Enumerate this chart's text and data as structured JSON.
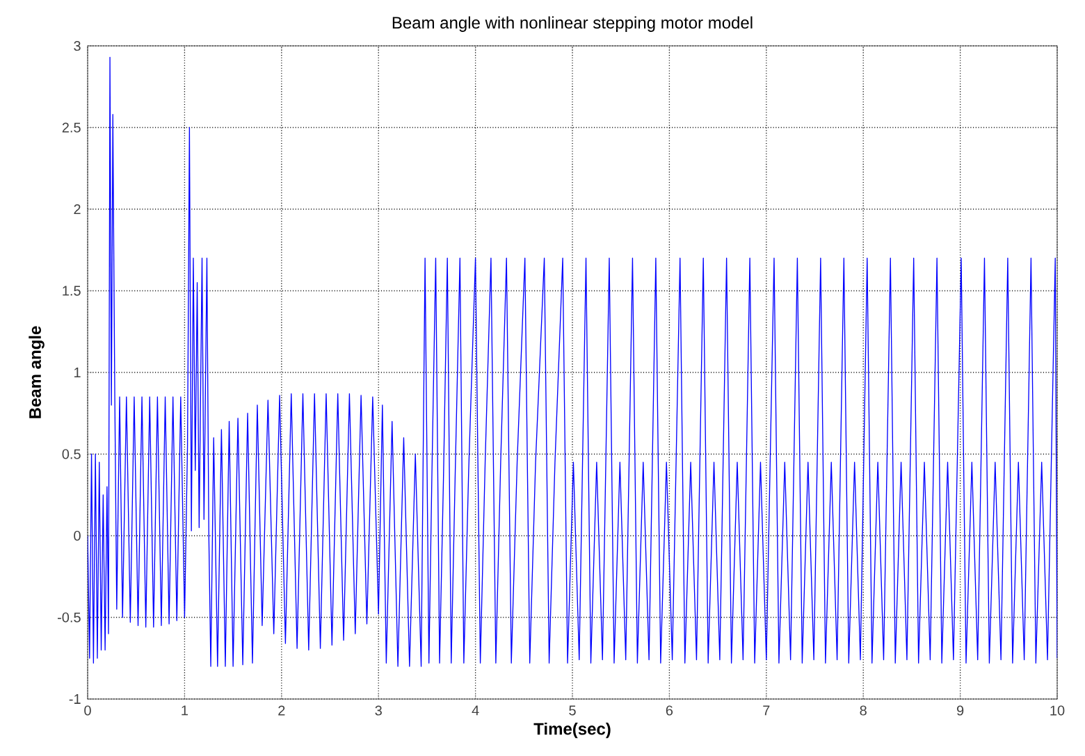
{
  "chart_data": {
    "type": "line",
    "title": "Beam angle with nonlinear stepping motor model",
    "xlabel": "Time(sec)",
    "ylabel": "Beam angle",
    "xlim": [
      0,
      10
    ],
    "ylim": [
      -1,
      3
    ],
    "xticks": [
      0,
      1,
      2,
      3,
      4,
      5,
      6,
      7,
      8,
      9,
      10
    ],
    "yticks": [
      -1,
      -0.5,
      0,
      0.5,
      1,
      1.5,
      2,
      2.5,
      3
    ],
    "grid": true,
    "series": [
      {
        "color": "#0000ff",
        "x": [
          0,
          0.02,
          0.04,
          0.06,
          0.08,
          0.1,
          0.12,
          0.14,
          0.16,
          0.18,
          0.2,
          0.215,
          0.23,
          0.245,
          0.26,
          0.28,
          0.3,
          0.33,
          0.36,
          0.4,
          0.44,
          0.48,
          0.52,
          0.56,
          0.6,
          0.64,
          0.68,
          0.72,
          0.76,
          0.8,
          0.84,
          0.88,
          0.92,
          0.96,
          1.0,
          1.03,
          1.05,
          1.07,
          1.09,
          1.11,
          1.13,
          1.15,
          1.18,
          1.2,
          1.23,
          1.25,
          1.27,
          1.3,
          1.34,
          1.38,
          1.42,
          1.46,
          1.5,
          1.55,
          1.6,
          1.65,
          1.7,
          1.75,
          1.8,
          1.86,
          1.92,
          1.98,
          2.04,
          2.1,
          2.16,
          2.22,
          2.28,
          2.34,
          2.4,
          2.46,
          2.52,
          2.58,
          2.64,
          2.7,
          2.76,
          2.82,
          2.88,
          2.94,
          3.0,
          3.04,
          3.08,
          3.14,
          3.2,
          3.26,
          3.32,
          3.38,
          3.44,
          3.48,
          3.52,
          3.55,
          3.59,
          3.63,
          3.67,
          3.71,
          3.75,
          3.79,
          3.84,
          3.88,
          3.93,
          4.0,
          4.05,
          4.1,
          4.16,
          4.21,
          4.26,
          4.32,
          4.37,
          4.43,
          4.51,
          4.56,
          4.62,
          4.71,
          4.76,
          4.82,
          4.9,
          4.95,
          5.01,
          5.07,
          5.14,
          5.19,
          5.25,
          5.31,
          5.38,
          5.43,
          5.49,
          5.55,
          5.62,
          5.67,
          5.73,
          5.79,
          5.86,
          5.91,
          5.97,
          6.03,
          6.11,
          6.16,
          6.22,
          6.28,
          6.35,
          6.4,
          6.46,
          6.52,
          6.59,
          6.64,
          6.7,
          6.76,
          6.83,
          6.88,
          6.94,
          7.0,
          7.08,
          7.13,
          7.19,
          7.25,
          7.32,
          7.37,
          7.43,
          7.49,
          7.56,
          7.61,
          7.67,
          7.73,
          7.8,
          7.85,
          7.91,
          7.97,
          8.04,
          8.09,
          8.15,
          8.21,
          8.28,
          8.33,
          8.39,
          8.45,
          8.52,
          8.57,
          8.63,
          8.69,
          8.76,
          8.81,
          8.87,
          8.93,
          9.01,
          9.06,
          9.12,
          9.18,
          9.25,
          9.3,
          9.36,
          9.42,
          9.49,
          9.54,
          9.6,
          9.66,
          9.73,
          9.78,
          9.84,
          9.9,
          9.98,
          10.0
        ],
        "values": [
          0,
          -0.75,
          0.5,
          -0.78,
          0.5,
          -0.75,
          0.45,
          -0.7,
          0.25,
          -0.7,
          0.3,
          -0.6,
          2.93,
          0.8,
          2.58,
          0.85,
          -0.45,
          0.85,
          -0.5,
          0.85,
          -0.53,
          0.85,
          -0.55,
          0.85,
          -0.56,
          0.85,
          -0.56,
          0.85,
          -0.55,
          0.85,
          -0.54,
          0.85,
          -0.52,
          0.85,
          -0.5,
          0.55,
          2.5,
          0.03,
          1.7,
          0.4,
          1.55,
          0.05,
          1.7,
          0.1,
          1.7,
          0.0,
          -0.8,
          0.6,
          -0.8,
          0.65,
          -0.8,
          0.7,
          -0.8,
          0.72,
          -0.79,
          0.75,
          -0.78,
          0.8,
          -0.55,
          0.83,
          -0.6,
          0.86,
          -0.66,
          0.87,
          -0.69,
          0.87,
          -0.7,
          0.87,
          -0.69,
          0.87,
          -0.67,
          0.87,
          -0.64,
          0.87,
          -0.6,
          0.86,
          -0.54,
          0.85,
          -0.48,
          0.8,
          -0.78,
          0.7,
          -0.8,
          0.6,
          -0.8,
          0.5,
          -0.8,
          1.7,
          -0.78,
          0.35,
          1.7,
          -0.78,
          0.35,
          1.7,
          -0.78,
          0.35,
          1.7,
          -0.78,
          0.4,
          1.7,
          -0.78,
          0.45,
          1.7,
          -0.78,
          0.45,
          1.7,
          -0.78,
          0.45,
          1.7,
          -0.78,
          0.45,
          1.7,
          -0.78,
          0.45,
          1.7,
          -0.78,
          0.45,
          -0.76,
          1.7,
          -0.78,
          0.45,
          -0.76,
          1.7,
          -0.78,
          0.45,
          -0.76,
          1.7,
          -0.78,
          0.45,
          -0.76,
          1.7,
          -0.78,
          0.45,
          -0.76,
          1.7,
          -0.78,
          0.45,
          -0.76,
          1.7,
          -0.78,
          0.45,
          -0.76,
          1.7,
          -0.78,
          0.45,
          -0.76,
          1.7,
          -0.78,
          0.45,
          -0.76,
          1.7,
          -0.78,
          0.45,
          -0.76,
          1.7,
          -0.78,
          0.45,
          -0.76,
          1.7,
          -0.78,
          0.45,
          -0.76,
          1.7,
          -0.78,
          0.45,
          -0.76,
          1.7,
          -0.78,
          0.45,
          -0.76,
          1.7,
          -0.78,
          0.45,
          -0.76,
          1.7,
          -0.78,
          0.45,
          -0.76,
          1.7,
          -0.78,
          0.45,
          -0.76,
          1.7,
          -0.78,
          0.45,
          -0.76,
          1.7,
          -0.78,
          0.45,
          -0.76,
          1.7,
          -0.78,
          0.45,
          -0.76,
          1.7,
          -0.78,
          0.45,
          -0.76,
          1.7,
          -0.75
        ]
      }
    ]
  }
}
